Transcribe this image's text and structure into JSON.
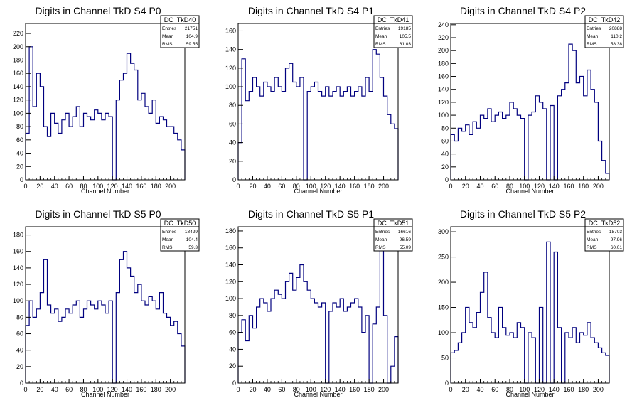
{
  "chart_data": [
    {
      "type": "bar",
      "title": "Digits in Channel TkD S4 P0",
      "xlabel": "Channel Number",
      "ylabel": "",
      "xlim": [
        0,
        220
      ],
      "ylim": [
        0,
        235
      ],
      "xticks": [
        0,
        20,
        40,
        60,
        80,
        100,
        120,
        140,
        160,
        180,
        200
      ],
      "yticks": [
        0,
        20,
        40,
        60,
        80,
        100,
        120,
        140,
        160,
        180,
        200,
        220
      ],
      "stats": {
        "name": "DC_TkD40",
        "entries_label": "Entries",
        "entries": "21751",
        "mean_label": "Mean",
        "mean": "104.9",
        "rms_label": "RMS",
        "rms": "59.55"
      },
      "x": [
        0,
        5,
        10,
        15,
        20,
        25,
        30,
        35,
        40,
        45,
        50,
        55,
        60,
        65,
        70,
        75,
        80,
        85,
        90,
        95,
        100,
        105,
        110,
        115,
        120,
        125,
        130,
        135,
        140,
        145,
        150,
        155,
        160,
        165,
        170,
        175,
        180,
        185,
        190,
        195,
        200,
        205,
        210,
        215
      ],
      "values": [
        70,
        200,
        110,
        160,
        140,
        80,
        65,
        100,
        85,
        70,
        90,
        100,
        80,
        95,
        110,
        80,
        100,
        95,
        90,
        105,
        100,
        90,
        100,
        95,
        0,
        120,
        150,
        160,
        190,
        175,
        165,
        120,
        130,
        110,
        100,
        120,
        85,
        95,
        90,
        80,
        80,
        70,
        60,
        45
      ]
    },
    {
      "type": "bar",
      "title": "Digits in Channel TkD S4 P1",
      "xlabel": "Channel Number",
      "ylabel": "",
      "xlim": [
        0,
        220
      ],
      "ylim": [
        0,
        168
      ],
      "xticks": [
        0,
        20,
        40,
        60,
        80,
        100,
        120,
        140,
        160,
        180,
        200
      ],
      "yticks": [
        0,
        20,
        40,
        60,
        80,
        100,
        120,
        140,
        160
      ],
      "stats": {
        "name": "DC_TkD41",
        "entries_label": "Entries",
        "entries": "19185",
        "mean_label": "Mean",
        "mean": "105.5",
        "rms_label": "RMS",
        "rms": "61.03"
      },
      "x": [
        0,
        5,
        10,
        15,
        20,
        25,
        30,
        35,
        40,
        45,
        50,
        55,
        60,
        65,
        70,
        75,
        80,
        85,
        90,
        95,
        100,
        105,
        110,
        115,
        120,
        125,
        130,
        135,
        140,
        145,
        150,
        155,
        160,
        165,
        170,
        175,
        180,
        185,
        190,
        195,
        200,
        205,
        210,
        215
      ],
      "values": [
        40,
        130,
        85,
        95,
        110,
        100,
        90,
        105,
        100,
        95,
        110,
        100,
        95,
        120,
        125,
        105,
        100,
        110,
        0,
        95,
        100,
        105,
        95,
        90,
        100,
        90,
        95,
        100,
        90,
        95,
        100,
        90,
        95,
        100,
        90,
        110,
        95,
        140,
        135,
        110,
        90,
        70,
        60,
        55
      ]
    },
    {
      "type": "bar",
      "title": "Digits in Channel TkD S4 P2",
      "xlabel": "Channel Number",
      "ylabel": "",
      "xlim": [
        0,
        215
      ],
      "ylim": [
        0,
        242
      ],
      "xticks": [
        0,
        20,
        40,
        60,
        80,
        100,
        120,
        140,
        160,
        180,
        200
      ],
      "yticks": [
        0,
        20,
        40,
        60,
        80,
        100,
        120,
        140,
        160,
        180,
        200,
        220,
        240
      ],
      "stats": {
        "name": "DC_TkD42",
        "entries_label": "Entries",
        "entries": "20888",
        "mean_label": "Mean",
        "mean": "110.2",
        "rms_label": "RMS",
        "rms": "58.38"
      },
      "x": [
        0,
        5,
        10,
        15,
        20,
        25,
        30,
        35,
        40,
        45,
        50,
        55,
        60,
        65,
        70,
        75,
        80,
        85,
        90,
        95,
        100,
        105,
        110,
        115,
        120,
        125,
        130,
        135,
        140,
        145,
        150,
        155,
        160,
        165,
        170,
        175,
        180,
        185,
        190,
        195,
        200,
        205,
        210
      ],
      "values": [
        70,
        60,
        80,
        75,
        85,
        70,
        90,
        80,
        100,
        95,
        110,
        90,
        100,
        105,
        95,
        100,
        120,
        110,
        100,
        95,
        0,
        100,
        105,
        130,
        120,
        110,
        0,
        115,
        0,
        130,
        140,
        150,
        210,
        200,
        150,
        160,
        130,
        170,
        140,
        120,
        60,
        30,
        10
      ]
    },
    {
      "type": "bar",
      "title": "Digits in Channel TkD S5 P0",
      "xlabel": "Channel Number",
      "ylabel": "",
      "xlim": [
        0,
        220
      ],
      "ylim": [
        0,
        190
      ],
      "xticks": [
        0,
        20,
        40,
        60,
        80,
        100,
        120,
        140,
        160,
        180,
        200
      ],
      "yticks": [
        0,
        20,
        40,
        60,
        80,
        100,
        120,
        140,
        160,
        180
      ],
      "stats": {
        "name": "DC_TkD50",
        "entries_label": "Entries",
        "entries": "18429",
        "mean_label": "Mean",
        "mean": "104.4",
        "rms_label": "RMS",
        "rms": "59.3"
      },
      "x": [
        0,
        5,
        10,
        15,
        20,
        25,
        30,
        35,
        40,
        45,
        50,
        55,
        60,
        65,
        70,
        75,
        80,
        85,
        90,
        95,
        100,
        105,
        110,
        115,
        120,
        125,
        130,
        135,
        140,
        145,
        150,
        155,
        160,
        165,
        170,
        175,
        180,
        185,
        190,
        195,
        200,
        205,
        210,
        215
      ],
      "values": [
        70,
        100,
        80,
        90,
        110,
        150,
        95,
        85,
        90,
        75,
        80,
        90,
        85,
        95,
        100,
        80,
        90,
        100,
        95,
        90,
        100,
        95,
        85,
        100,
        0,
        110,
        150,
        160,
        140,
        130,
        110,
        120,
        100,
        95,
        105,
        100,
        90,
        110,
        85,
        80,
        70,
        75,
        60,
        45
      ]
    },
    {
      "type": "bar",
      "title": "Digits in Channel TkD S5 P1",
      "xlabel": "Channel Number",
      "ylabel": "",
      "xlim": [
        0,
        220
      ],
      "ylim": [
        0,
        185
      ],
      "xticks": [
        0,
        20,
        40,
        60,
        80,
        100,
        120,
        140,
        160,
        180,
        200
      ],
      "yticks": [
        0,
        20,
        40,
        60,
        80,
        100,
        120,
        140,
        160,
        180
      ],
      "stats": {
        "name": "DC_TkD51",
        "entries_label": "Entries",
        "entries": "16616",
        "mean_label": "Mean",
        "mean": "96.59",
        "rms_label": "RMS",
        "rms": "55.09"
      },
      "x": [
        0,
        5,
        10,
        15,
        20,
        25,
        30,
        35,
        40,
        45,
        50,
        55,
        60,
        65,
        70,
        75,
        80,
        85,
        90,
        95,
        100,
        105,
        110,
        115,
        120,
        125,
        130,
        135,
        140,
        145,
        150,
        155,
        160,
        165,
        170,
        175,
        180,
        185,
        190,
        195,
        200,
        205,
        210,
        215
      ],
      "values": [
        60,
        75,
        50,
        80,
        65,
        90,
        100,
        95,
        85,
        100,
        110,
        105,
        100,
        120,
        130,
        110,
        125,
        140,
        120,
        110,
        100,
        95,
        90,
        95,
        0,
        85,
        95,
        90,
        100,
        85,
        90,
        95,
        100,
        90,
        60,
        80,
        0,
        70,
        90,
        160,
        80,
        0,
        20,
        55
      ]
    },
    {
      "type": "bar",
      "title": "Digits in Channel TkD S5 P2",
      "xlabel": "Channel Number",
      "ylabel": "",
      "xlim": [
        0,
        215
      ],
      "ylim": [
        0,
        310
      ],
      "xticks": [
        0,
        20,
        40,
        60,
        80,
        100,
        120,
        140,
        160,
        180,
        200
      ],
      "yticks": [
        0,
        50,
        100,
        150,
        200,
        250,
        300
      ],
      "stats": {
        "name": "DC_TkD52",
        "entries_label": "Entries",
        "entries": "18703",
        "mean_label": "Mean",
        "mean": "97.96",
        "rms_label": "RMS",
        "rms": "60.01"
      },
      "x": [
        0,
        5,
        10,
        15,
        20,
        25,
        30,
        35,
        40,
        45,
        50,
        55,
        60,
        65,
        70,
        75,
        80,
        85,
        90,
        95,
        100,
        105,
        110,
        115,
        120,
        125,
        130,
        135,
        140,
        145,
        150,
        155,
        160,
        165,
        170,
        175,
        180,
        185,
        190,
        195,
        200,
        205,
        210
      ],
      "values": [
        60,
        65,
        80,
        100,
        150,
        120,
        110,
        140,
        180,
        220,
        130,
        100,
        90,
        150,
        110,
        95,
        100,
        90,
        120,
        110,
        0,
        100,
        90,
        0,
        150,
        0,
        280,
        0,
        260,
        110,
        0,
        100,
        90,
        110,
        80,
        100,
        95,
        120,
        90,
        80,
        70,
        60,
        55
      ]
    }
  ]
}
